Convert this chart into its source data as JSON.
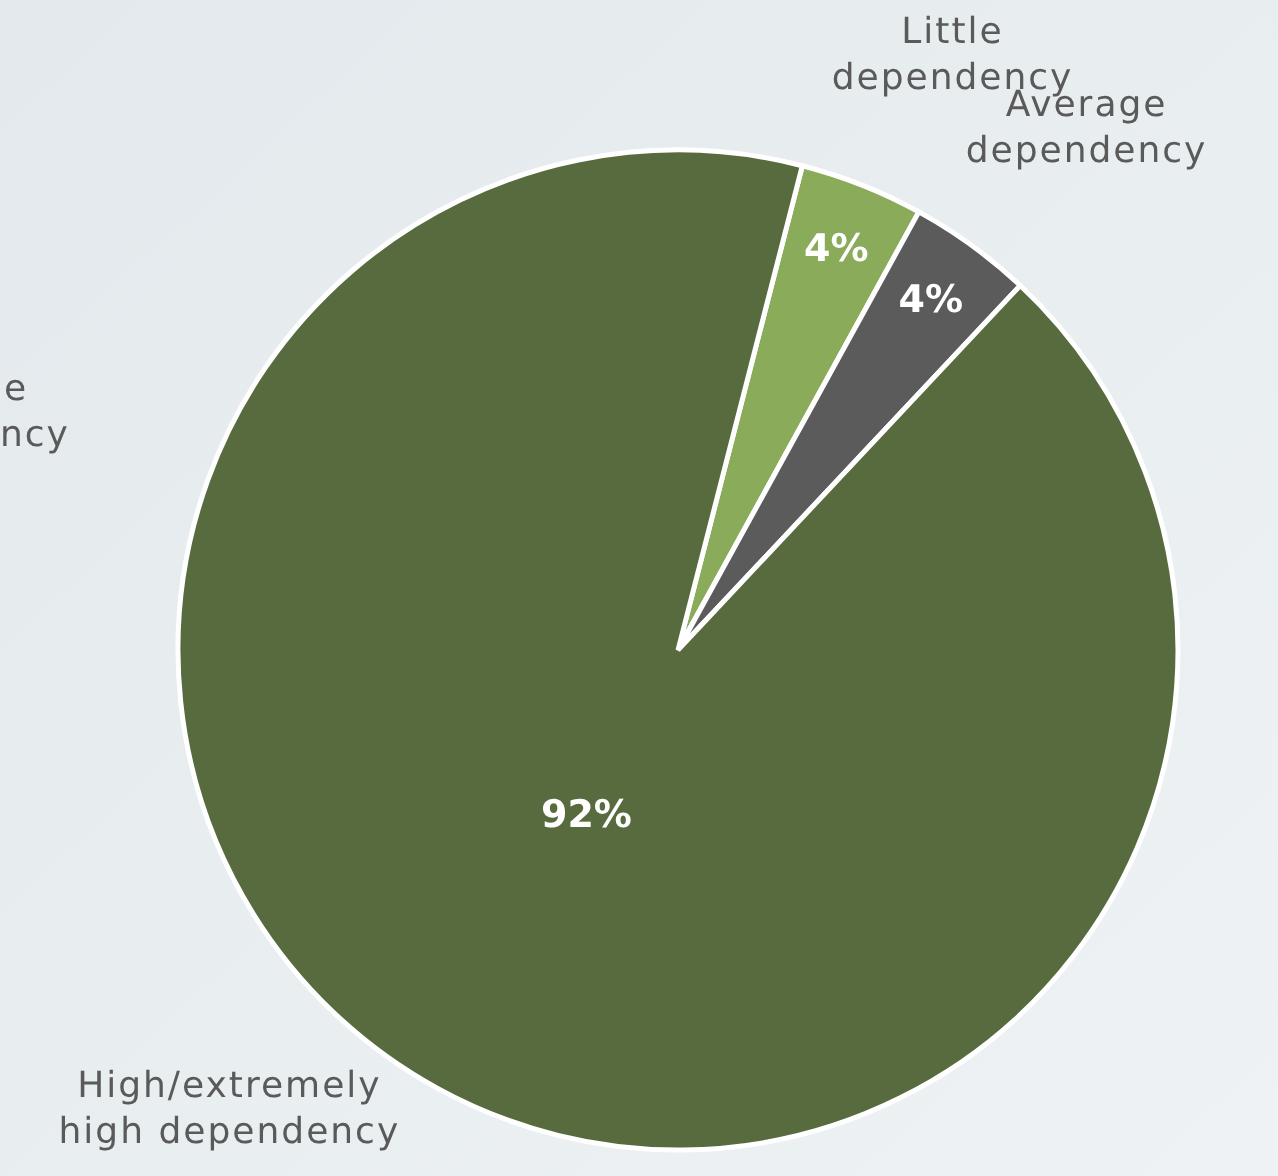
{
  "chart_data": {
    "type": "pie",
    "categories": [
      "Little dependency",
      "Average dependency",
      "High/extremely high dependency"
    ],
    "values": [
      4,
      4,
      92
    ],
    "colors": [
      "#8aab5a",
      "#5b5b5b",
      "#586b3f"
    ],
    "value_labels": [
      "4%",
      "4%",
      "92%"
    ],
    "annotations": [
      "e\nncy"
    ]
  }
}
